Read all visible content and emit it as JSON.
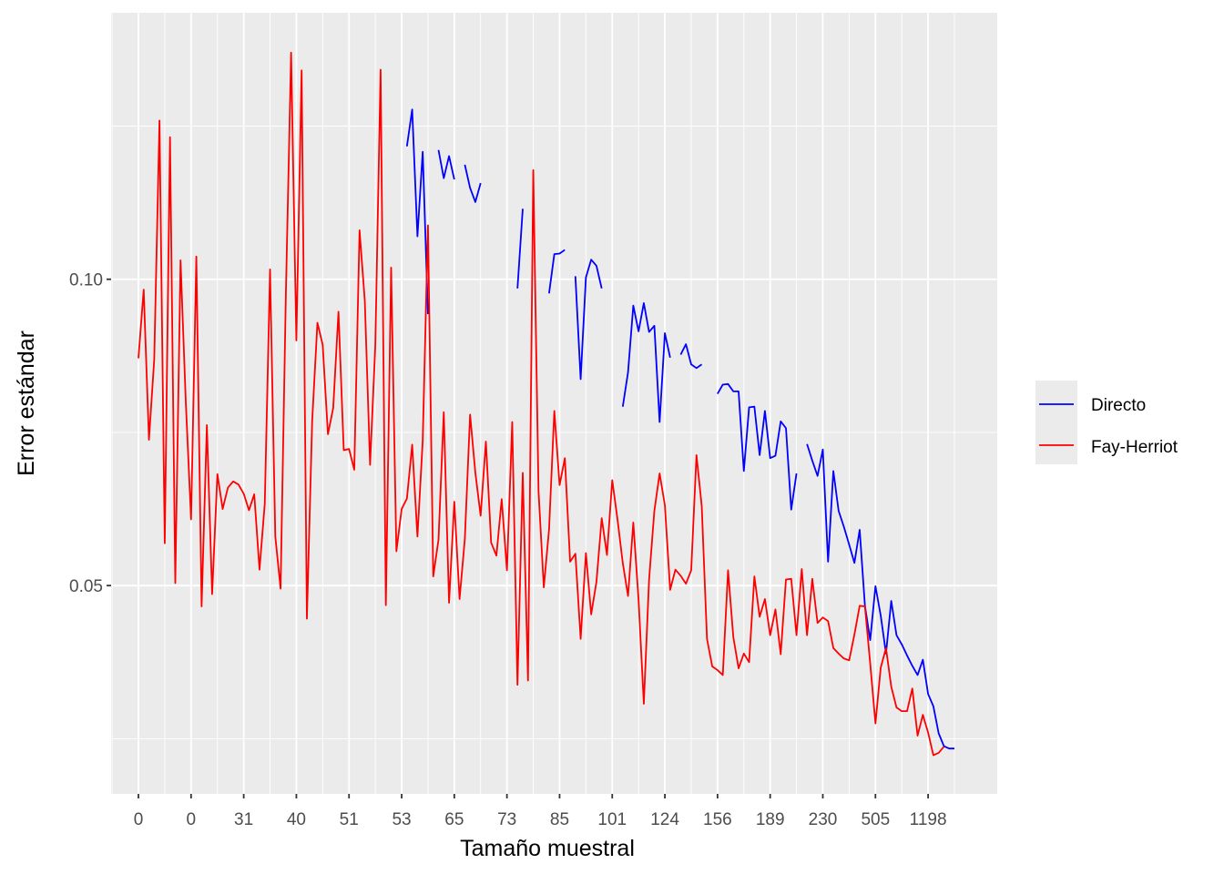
{
  "chart_data": {
    "type": "line",
    "xlabel": "Tamaño muestral",
    "ylabel": "Error estándar",
    "x_tick_labels": [
      "0",
      "0",
      "31",
      "40",
      "51",
      "53",
      "65",
      "73",
      "85",
      "101",
      "124",
      "156",
      "189",
      "230",
      "505",
      "1198"
    ],
    "y_ticks": [
      0.05,
      0.1
    ],
    "y_tick_labels": [
      "0.05",
      "0.10"
    ],
    "ylim": [
      0.016,
      0.1435
    ],
    "n_points": 156,
    "grid": true,
    "legend_position": "right",
    "background": "#ebebeb",
    "series": [
      {
        "name": "Directo",
        "color": "#0000ff",
        "points": [
          [
            51,
            0.1217
          ],
          [
            52,
            0.1277
          ],
          [
            53,
            0.107
          ],
          [
            54,
            0.1208
          ],
          [
            55,
            0.0943
          ],
          [
            57,
            0.1211
          ],
          [
            58,
            0.1165
          ],
          [
            59,
            0.1201
          ],
          [
            60,
            0.1163
          ],
          [
            62,
            0.1187
          ],
          [
            63,
            0.1149
          ],
          [
            64,
            0.1126
          ],
          [
            65,
            0.1157
          ],
          [
            72,
            0.0985
          ],
          [
            73,
            0.1115
          ],
          [
            78,
            0.0977
          ],
          [
            79,
            0.1041
          ],
          [
            80,
            0.1042
          ],
          [
            81,
            0.1048
          ],
          [
            83,
            0.1005
          ],
          [
            84,
            0.0837
          ],
          [
            85,
            0.1003
          ],
          [
            86,
            0.1032
          ],
          [
            87,
            0.1022
          ],
          [
            88,
            0.0985
          ],
          [
            92,
            0.0792
          ],
          [
            93,
            0.0848
          ],
          [
            94,
            0.0957
          ],
          [
            95,
            0.0915
          ],
          [
            96,
            0.0961
          ],
          [
            97,
            0.0914
          ],
          [
            98,
            0.0924
          ],
          [
            99,
            0.0767
          ],
          [
            100,
            0.0912
          ],
          [
            101,
            0.0872
          ],
          [
            103,
            0.0877
          ],
          [
            104,
            0.0894
          ],
          [
            105,
            0.0861
          ],
          [
            106,
            0.0855
          ],
          [
            107,
            0.0861
          ],
          [
            110,
            0.0813
          ],
          [
            111,
            0.0828
          ],
          [
            112,
            0.0829
          ],
          [
            113,
            0.0817
          ],
          [
            114,
            0.0817
          ],
          [
            115,
            0.0687
          ],
          [
            116,
            0.0791
          ],
          [
            117,
            0.0792
          ],
          [
            118,
            0.0713
          ],
          [
            119,
            0.0785
          ],
          [
            120,
            0.0708
          ],
          [
            121,
            0.0712
          ],
          [
            122,
            0.0768
          ],
          [
            123,
            0.0757
          ],
          [
            124,
            0.0624
          ],
          [
            125,
            0.0683
          ],
          [
            127,
            0.0731
          ],
          [
            128,
            0.0704
          ],
          [
            129,
            0.0679
          ],
          [
            130,
            0.0722
          ],
          [
            131,
            0.0539
          ],
          [
            132,
            0.0687
          ],
          [
            133,
            0.0622
          ],
          [
            134,
            0.0596
          ],
          [
            135,
            0.0567
          ],
          [
            136,
            0.0537
          ],
          [
            137,
            0.0591
          ],
          [
            138,
            0.0467
          ],
          [
            139,
            0.0411
          ],
          [
            140,
            0.0499
          ],
          [
            141,
            0.0451
          ],
          [
            142,
            0.0389
          ],
          [
            143,
            0.0475
          ],
          [
            144,
            0.0419
          ],
          [
            145,
            0.0404
          ],
          [
            146,
            0.0386
          ],
          [
            147,
            0.0369
          ],
          [
            148,
            0.0354
          ],
          [
            149,
            0.0379
          ],
          [
            150,
            0.0323
          ],
          [
            151,
            0.0303
          ],
          [
            152,
            0.0259
          ],
          [
            153,
            0.0238
          ],
          [
            154,
            0.0234
          ],
          [
            155,
            0.0234
          ]
        ]
      },
      {
        "name": "Fay-Herriot",
        "color": "#ff0000",
        "values": [
          0.0871,
          0.0983,
          0.0738,
          0.0869,
          0.1259,
          0.0569,
          0.1232,
          0.0504,
          0.1031,
          0.0799,
          0.0608,
          0.1037,
          0.0466,
          0.0762,
          0.0486,
          0.0682,
          0.0625,
          0.066,
          0.067,
          0.0665,
          0.065,
          0.0623,
          0.0649,
          0.0526,
          0.0634,
          0.1016,
          0.058,
          0.0495,
          0.0973,
          0.137,
          0.09,
          0.1341,
          0.0446,
          0.0768,
          0.0929,
          0.0893,
          0.0747,
          0.079,
          0.0947,
          0.0721,
          0.0723,
          0.0689,
          0.108,
          0.0965,
          0.0697,
          0.0893,
          0.1342,
          0.0468,
          0.1019,
          0.0556,
          0.0625,
          0.0642,
          0.073,
          0.058,
          0.0736,
          0.1088,
          0.0515,
          0.0575,
          0.0783,
          0.0472,
          0.0637,
          0.0478,
          0.0576,
          0.0779,
          0.0684,
          0.0614,
          0.0735,
          0.057,
          0.0549,
          0.0641,
          0.0525,
          0.0767,
          0.0338,
          0.0684,
          0.0345,
          0.1178,
          0.0654,
          0.0497,
          0.0592,
          0.0785,
          0.0664,
          0.0708,
          0.0539,
          0.0552,
          0.0413,
          0.0553,
          0.0453,
          0.0506,
          0.061,
          0.055,
          0.0672,
          0.0608,
          0.0537,
          0.0483,
          0.0603,
          0.0477,
          0.0307,
          0.051,
          0.0622,
          0.0683,
          0.0631,
          0.0493,
          0.0526,
          0.0516,
          0.0503,
          0.0525,
          0.0713,
          0.063,
          0.0413,
          0.0368,
          0.0362,
          0.0354,
          0.0525,
          0.0416,
          0.0365,
          0.0389,
          0.0375,
          0.0515,
          0.0449,
          0.0478,
          0.0419,
          0.0461,
          0.0388,
          0.051,
          0.0511,
          0.0419,
          0.0527,
          0.0419,
          0.0511,
          0.0439,
          0.0448,
          0.0442,
          0.0398,
          0.0389,
          0.0381,
          0.0378,
          0.042,
          0.0467,
          0.0466,
          0.0373,
          0.0275,
          0.0366,
          0.0398,
          0.0335,
          0.0301,
          0.0295,
          0.0295,
          0.0332,
          0.0255,
          0.0289,
          0.026,
          0.0223,
          0.0227,
          0.0237
        ]
      }
    ],
    "legend": [
      {
        "label": "Directo",
        "color": "#0000ff"
      },
      {
        "label": "Fay-Herriot",
        "color": "#ff0000"
      }
    ]
  }
}
